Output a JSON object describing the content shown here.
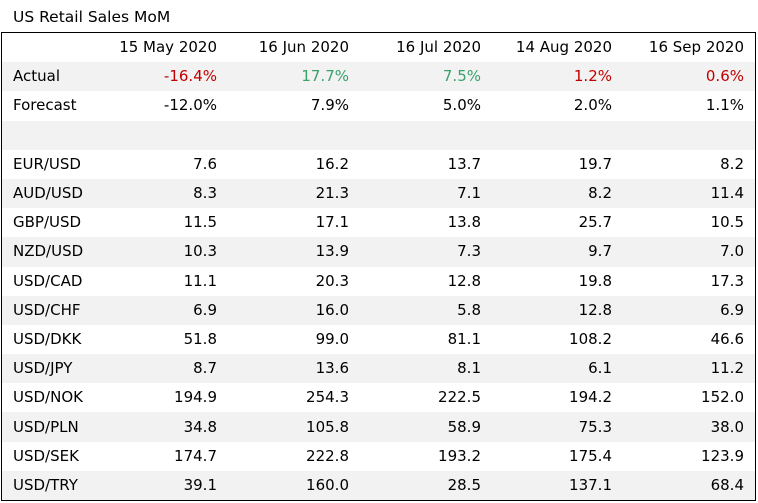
{
  "title": "US Retail Sales MoM",
  "columns": [
    "",
    "15 May 2020",
    "16 Jun 2020",
    "16 Jul 2020",
    "14 Aug 2020",
    "16 Sep 2020"
  ],
  "actual": {
    "label": "Actual",
    "values": [
      "-16.4%",
      "17.7%",
      "7.5%",
      "1.2%",
      "0.6%"
    ],
    "colors": [
      "neg",
      "pos",
      "pos",
      "neg",
      "neg"
    ]
  },
  "forecast": {
    "label": "Forecast",
    "values": [
      "-12.0%",
      "7.9%",
      "5.0%",
      "2.0%",
      "1.1%"
    ]
  },
  "pairs": [
    {
      "label": "EUR/USD",
      "values": [
        "7.6",
        "16.2",
        "13.7",
        "19.7",
        "8.2"
      ]
    },
    {
      "label": "AUD/USD",
      "values": [
        "8.3",
        "21.3",
        "7.1",
        "8.2",
        "11.4"
      ]
    },
    {
      "label": "GBP/USD",
      "values": [
        "11.5",
        "17.1",
        "13.8",
        "25.7",
        "10.5"
      ]
    },
    {
      "label": "NZD/USD",
      "values": [
        "10.3",
        "13.9",
        "7.3",
        "9.7",
        "7.0"
      ]
    },
    {
      "label": "USD/CAD",
      "values": [
        "11.1",
        "20.3",
        "12.8",
        "19.8",
        "17.3"
      ]
    },
    {
      "label": "USD/CHF",
      "values": [
        "6.9",
        "16.0",
        "5.8",
        "12.8",
        "6.9"
      ]
    },
    {
      "label": "USD/DKK",
      "values": [
        "51.8",
        "99.0",
        "81.1",
        "108.2",
        "46.6"
      ]
    },
    {
      "label": "USD/JPY",
      "values": [
        "8.7",
        "13.6",
        "8.1",
        "6.1",
        "11.2"
      ]
    },
    {
      "label": "USD/NOK",
      "values": [
        "194.9",
        "254.3",
        "222.5",
        "194.2",
        "152.0"
      ]
    },
    {
      "label": "USD/PLN",
      "values": [
        "34.8",
        "105.8",
        "58.9",
        "75.3",
        "38.0"
      ]
    },
    {
      "label": "USD/SEK",
      "values": [
        "174.7",
        "222.8",
        "193.2",
        "175.4",
        "123.9"
      ]
    },
    {
      "label": "USD/TRY",
      "values": [
        "39.1",
        "160.0",
        "28.5",
        "137.1",
        "68.4"
      ]
    }
  ],
  "colors": {
    "negative": "#c00000",
    "positive": "#3aa16b",
    "shaded_row": "#f2f2f2",
    "border": "#000000"
  }
}
